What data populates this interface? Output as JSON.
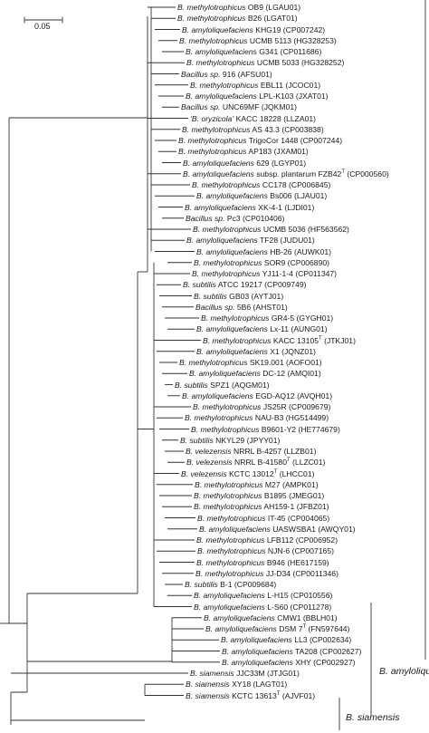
{
  "scale_bar": {
    "label": "0.05"
  },
  "taxa": [
    {
      "genus": "B. methylotrophicus",
      "strain": "OB9",
      "acc": "(LGAU01)",
      "type": false
    },
    {
      "genus": "B. methylotrophicus",
      "strain": "B26",
      "acc": "(LGAT01)",
      "type": false
    },
    {
      "genus": "B. amyloliquefaciens",
      "strain": "KHG19",
      "acc": "(CP007242)",
      "type": false
    },
    {
      "genus": "B. methylotrophicus",
      "strain": "UCMB 5113",
      "acc": "(HG328253)",
      "type": false
    },
    {
      "genus": "B. amyloliquefaciens",
      "strain": "G341",
      "acc": "(CP011686)",
      "type": false
    },
    {
      "genus": "B. methylotrophicus",
      "strain": "UCMB 5033",
      "acc": "(HG328252)",
      "type": false
    },
    {
      "genus": "Bacillus sp.",
      "strain": "916",
      "acc": "(AFSU01)",
      "type": false
    },
    {
      "genus": "B. methylotrophicus",
      "strain": "EBL11",
      "acc": "(JCOC01)",
      "type": false
    },
    {
      "genus": "B. amyloliquefaciens",
      "strain": "LPL-K103",
      "acc": "(JXAT01)",
      "type": false
    },
    {
      "genus": "Bacillus sp.",
      "strain": "UNC69MF",
      "acc": "(JQKM01)",
      "type": false
    },
    {
      "genus": "‘B. oryzicola’",
      "strain": "KACC 18228",
      "acc": "(LLZA01)",
      "type": false
    },
    {
      "genus": "B. methylotrophicus",
      "strain": "AS 43.3",
      "acc": "(CP003838)",
      "type": false
    },
    {
      "genus": "B. methylotrophicus",
      "strain": "TrigoCor 1448",
      "acc": "(CP007244)",
      "type": false
    },
    {
      "genus": "B. methylotrophicus",
      "strain": "AP183",
      "acc": "(JXAM01)",
      "type": false
    },
    {
      "genus": "B. amyloliquefaciens",
      "strain": "629",
      "acc": "(LGYP01)",
      "type": false
    },
    {
      "genus": "B. amyloliquefaciens",
      "strain": "subsp. plantarum FZB42",
      "acc": "(CP000560)",
      "type": true
    },
    {
      "genus": "B. methylotrophicus",
      "strain": "CC178",
      "acc": "(CP006845)",
      "type": false
    },
    {
      "genus": "B. amyloliquefaciens",
      "strain": "Bs006",
      "acc": "(LJAU01)",
      "type": false
    },
    {
      "genus": "B. amyloliquefaciens",
      "strain": "XK-4-1",
      "acc": "(LJDI01)",
      "type": false
    },
    {
      "genus": "Bacillus sp.",
      "strain": "Pc3",
      "acc": "(CP010406)",
      "type": false
    },
    {
      "genus": "B. methylotrophicus",
      "strain": "UCMB 5036",
      "acc": "(HF563562)",
      "type": false
    },
    {
      "genus": "B. amyloliquefaciens",
      "strain": "TF28",
      "acc": "(JUDU01)",
      "type": false
    },
    {
      "genus": "B. amyloliquefaciens",
      "strain": "HB-26",
      "acc": "(AUWK01)",
      "type": false
    },
    {
      "genus": "B. methylotrophicus",
      "strain": "SOR9",
      "acc": "(CP006890)",
      "type": false
    },
    {
      "genus": "B. methylotrophicus",
      "strain": "YJ11-1-4",
      "acc": "(CP011347)",
      "type": false
    },
    {
      "genus": "B. subtilis",
      "strain": "ATCC 19217",
      "acc": "(CP009749)",
      "type": false
    },
    {
      "genus": "B. subtilis",
      "strain": "GB03",
      "acc": "(AYTJ01)",
      "type": false
    },
    {
      "genus": "Bacillus sp.",
      "strain": "5B6",
      "acc": "(AHST01)",
      "type": false
    },
    {
      "genus": "B. methylotrophicus",
      "strain": "GR4-5",
      "acc": "(GYGH01)",
      "type": false
    },
    {
      "genus": "B. amyloliquefaciens",
      "strain": "Lx-11",
      "acc": "(AUNG01)",
      "type": false
    },
    {
      "genus": "B. methylotrophicus",
      "strain": "KACC 13105",
      "acc": "(JTKJ01)",
      "type": true
    },
    {
      "genus": "B. amyloliquefaciens",
      "strain": "X1",
      "acc": "(JQNZ01)",
      "type": false
    },
    {
      "genus": "B. methylotrophicus",
      "strain": "SK19.001",
      "acc": "(AOFO01)",
      "type": false
    },
    {
      "genus": "B. amyloliquefaciens",
      "strain": "DC-12",
      "acc": "(AMQI01)",
      "type": false
    },
    {
      "genus": "B. subtilis",
      "strain": "SPZ1",
      "acc": "(AQGM01)",
      "type": false
    },
    {
      "genus": "B. amyloliquefaciens",
      "strain": "EGD-AQ12",
      "acc": "(AVQH01)",
      "type": false
    },
    {
      "genus": "B. methylotrophicus",
      "strain": "JS25R",
      "acc": "(CP009679)",
      "type": false
    },
    {
      "genus": "B. methylotrophicus",
      "strain": "NAU-B3",
      "acc": "(HG514499)",
      "type": false
    },
    {
      "genus": "B. methylotrophicus",
      "strain": "B9601-Y2",
      "acc": "(HE774679)",
      "type": false
    },
    {
      "genus": "B. subtilis",
      "strain": "NKYL29",
      "acc": "(JPYY01)",
      "type": false
    },
    {
      "genus": "B. velezensis",
      "strain": "NRRL B-4257",
      "acc": "(LLZB01)",
      "type": false
    },
    {
      "genus": "B. velezensis",
      "strain": "NRRL B-41580",
      "acc": "(LLZC01)",
      "type": true
    },
    {
      "genus": "B. velezensis",
      "strain": "KCTC 13012",
      "acc": "(LHCC01)",
      "type": true
    },
    {
      "genus": "B. methylotrophicus",
      "strain": "M27",
      "acc": "(AMPK01)",
      "type": false
    },
    {
      "genus": "B. methylotrophicus",
      "strain": "B1895",
      "acc": "(JMEG01)",
      "type": false
    },
    {
      "genus": "B. methylotrophicus",
      "strain": "AH159-1",
      "acc": "(JFBZ01)",
      "type": false
    },
    {
      "genus": "B. methylotrophicus",
      "strain": "IT-45",
      "acc": "(CP004065)",
      "type": false
    },
    {
      "genus": "B. amyloliquefaciens",
      "strain": "UASWSBA1",
      "acc": "(AWQY01)",
      "type": false
    },
    {
      "genus": "B. methylotrophicus",
      "strain": "LFB112",
      "acc": "(CP006952)",
      "type": false
    },
    {
      "genus": "B. methylotrophicus",
      "strain": "NJN-6",
      "acc": "(CP007165)",
      "type": false
    },
    {
      "genus": "B. methylotrophicus",
      "strain": "B946",
      "acc": "(HE617159)",
      "type": false
    },
    {
      "genus": "B. methylotrophicus",
      "strain": "JJ-D34",
      "acc": "(CP0011346)",
      "type": false
    },
    {
      "genus": "B. subtilis",
      "strain": "B-1",
      "acc": "(CP009684)",
      "type": false
    },
    {
      "genus": "B. amyloliquefaciens",
      "strain": "L-H15",
      "acc": "(CP010556)",
      "type": false
    },
    {
      "genus": "B. amyloliquefaciens",
      "strain": "L-S60",
      "acc": "(CP011278)",
      "type": false
    },
    {
      "genus": "B. amyloliquefaciens",
      "strain": "CMW1",
      "acc": "(BBLH01)",
      "type": false
    },
    {
      "genus": "B. amyloliquefaciens",
      "strain": "DSM 7",
      "acc": "(FN597644)",
      "type": true
    },
    {
      "genus": "B. amyloliquefaciens",
      "strain": "LL3",
      "acc": "(CP002634)",
      "type": false
    },
    {
      "genus": "B. amyloliquefaciens",
      "strain": "TA208",
      "acc": "(CP002627)",
      "type": false
    },
    {
      "genus": "B. amyloliquefaciens",
      "strain": "XHY",
      "acc": "(CP002927)",
      "type": false
    },
    {
      "genus": "B. siamensis",
      "strain": "JJC33M",
      "acc": "(JTJG01)",
      "type": false
    },
    {
      "genus": "B. siamensis",
      "strain": "XY18",
      "acc": "(LAGT01)",
      "type": false
    },
    {
      "genus": "B. siamensis",
      "strain": "KCTC 13613",
      "acc": "(AJVF01)",
      "type": true
    }
  ],
  "clades": [
    {
      "label": "B. amyloliqu"
    },
    {
      "label": "B. siamensis"
    }
  ],
  "colors": {
    "line": "#333333",
    "text": "#1a1a1a"
  }
}
